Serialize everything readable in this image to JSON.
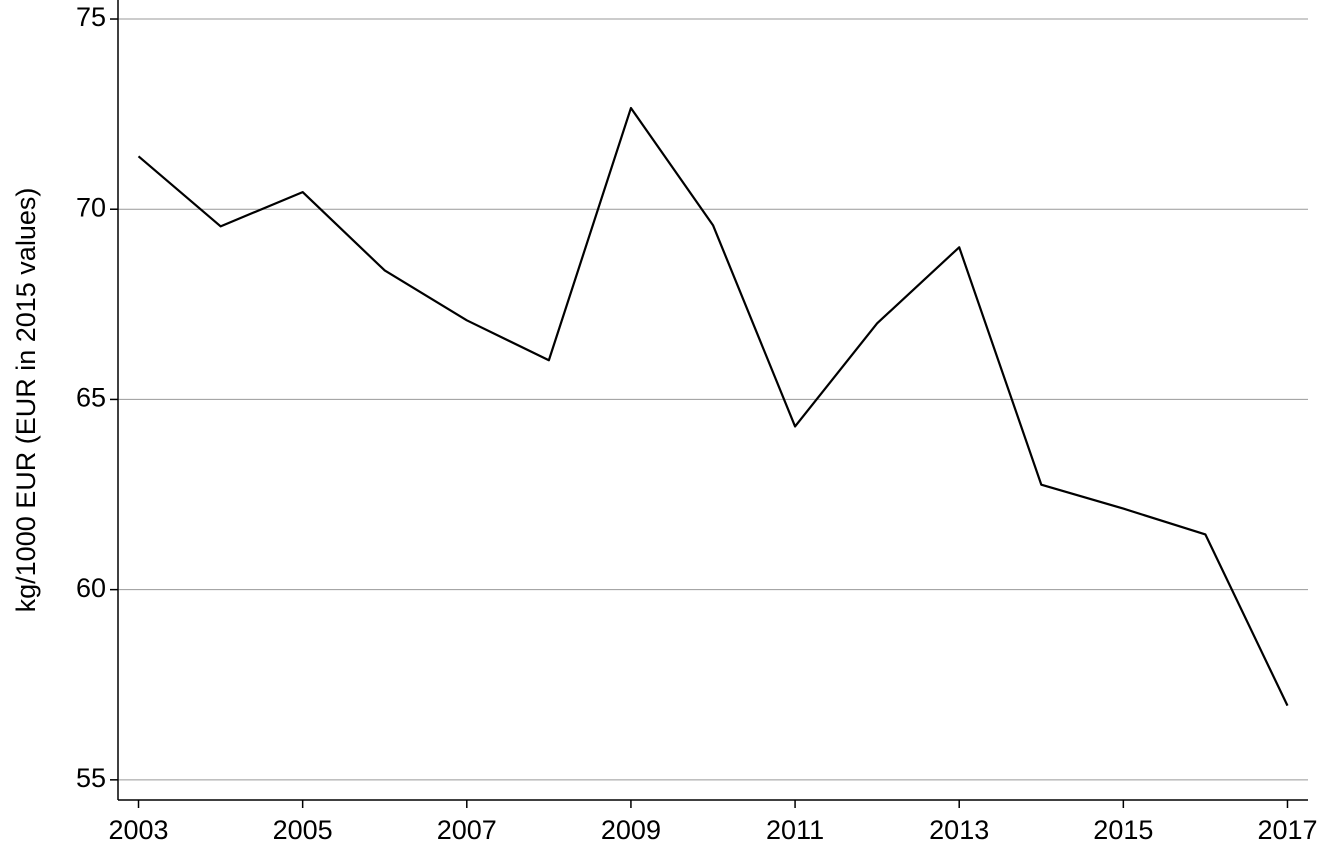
{
  "chart_data": {
    "type": "line",
    "y_label": "kg/1000 EUR (EUR in 2015 values)",
    "x": [
      2003,
      2004,
      2005,
      2006,
      2007,
      2008,
      2009,
      2010,
      2011,
      2012,
      2013,
      2014,
      2015,
      2016,
      2017
    ],
    "values": [
      71.39,
      69.55,
      70.45,
      68.39,
      67.08,
      66.03,
      72.66,
      69.58,
      64.29,
      67.0,
      69.0,
      62.76,
      62.13,
      61.45,
      56.95
    ],
    "color": "#000000",
    "xlim": [
      2002.75,
      2017.25
    ],
    "xticks": [
      2003,
      2005,
      2007,
      2009,
      2011,
      2013,
      2015,
      2017
    ],
    "ylim": [
      54.47,
      75.5
    ],
    "yticks": [
      55,
      60,
      65,
      70,
      75
    ],
    "grid": true
  }
}
